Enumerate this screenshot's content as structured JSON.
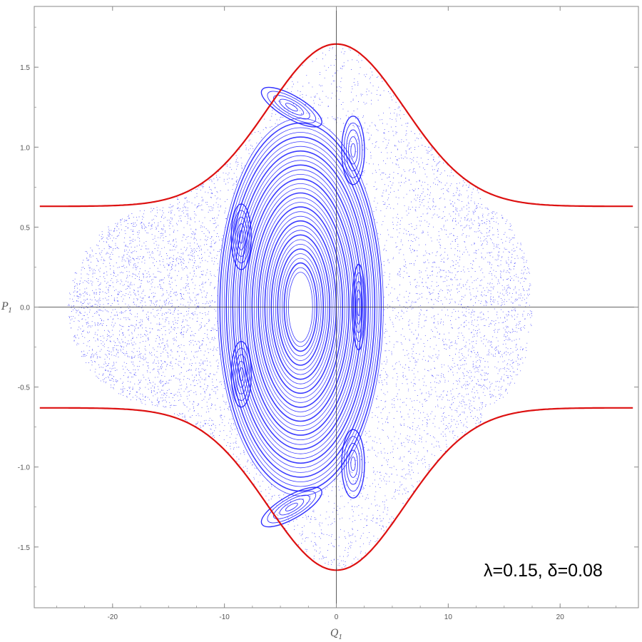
{
  "chart_data": {
    "type": "scatter",
    "title": "",
    "xlabel": "Q",
    "xlabel_sub": "1",
    "ylabel": "P",
    "ylabel_sub": "1",
    "xlim": [
      -27,
      27
    ],
    "ylim": [
      -1.88,
      1.88
    ],
    "xticks": [
      -20,
      -10,
      0,
      10,
      20
    ],
    "xtick_labels": [
      "-20",
      "-10",
      "0",
      "10",
      "20"
    ],
    "yticks": [
      -1.5,
      -1.0,
      -0.5,
      0.0,
      0.5,
      1.0,
      1.5
    ],
    "ytick_labels": [
      "-1.5",
      "-1.0",
      "-0.5",
      "0.0",
      "0.5",
      "1.0",
      "1.5"
    ],
    "axes_through_origin": true,
    "grid": false,
    "annotation": "λ=0.15, δ=0.08",
    "annotation_position": "bottom-right",
    "colors": {
      "orbits": "#1a1aff",
      "boundary": "#dd1111",
      "axis": "#555555",
      "frame": "#888888"
    },
    "boundary_curve": {
      "name": "",
      "description_values": {
        "P_at_Q0": 1.645,
        "P_asymptote": 0.63,
        "Q_range": [
          -26.5,
          26.5
        ]
      }
    },
    "main_island": {
      "center": [
        -3.2,
        0.0
      ],
      "semi_axis_Q": 7.4,
      "semi_axis_P": 1.18
    },
    "satellite_islands": [
      {
        "center": [
          -8.5,
          0.44
        ]
      },
      {
        "center": [
          -8.5,
          -0.42
        ]
      },
      {
        "center": [
          -4.0,
          1.25
        ]
      },
      {
        "center": [
          -4.0,
          -1.25
        ]
      },
      {
        "center": [
          1.5,
          0.98
        ]
      },
      {
        "center": [
          1.5,
          -0.98
        ]
      },
      {
        "center": [
          2.0,
          0.0
        ]
      }
    ],
    "chaotic_sea": {
      "Q_range": [
        -24.0,
        17.5
      ]
    }
  }
}
